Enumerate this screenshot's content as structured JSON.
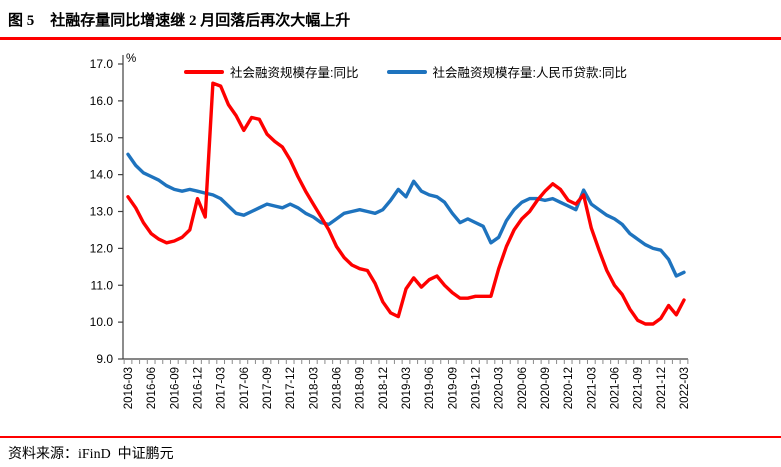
{
  "header": {
    "figure_label": "图 5",
    "title": "社融存量同比增速继 2 月回落后再次大幅上升"
  },
  "footer": {
    "source": "资料来源：iFinD  中证鹏元"
  },
  "rule_color": "#fe0000",
  "chart_data": {
    "type": "line",
    "title": "",
    "unit_label": "%",
    "grid": false,
    "legend_position": "top",
    "ylim": [
      9.0,
      17.0
    ],
    "ytick_step": 1.0,
    "ytick_labels": [
      "9.0",
      "10.0",
      "11.0",
      "12.0",
      "13.0",
      "14.0",
      "15.0",
      "16.0",
      "17.0"
    ],
    "x_start": "2016-03",
    "x_end": "2022-03",
    "x_frequency": "monthly",
    "xtick_labels": [
      "2016-03",
      "2016-06",
      "2016-09",
      "2016-12",
      "2017-03",
      "2017-06",
      "2017-09",
      "2017-12",
      "2018-03",
      "2018-06",
      "2018-09",
      "2018-12",
      "2019-03",
      "2019-06",
      "2019-09",
      "2019-12",
      "2020-03",
      "2020-06",
      "2020-09",
      "2020-12",
      "2021-03",
      "2021-06",
      "2021-09",
      "2021-12",
      "2022-03"
    ],
    "axis_color": "#3f3f3f",
    "tick_color": "#8a8a8a",
    "series": [
      {
        "name": "社会融资规模存量:同比",
        "color": "#fe0000",
        "values": [
          13.4,
          13.1,
          12.7,
          12.4,
          12.25,
          12.15,
          12.2,
          12.3,
          12.5,
          13.35,
          12.85,
          16.48,
          16.4,
          15.9,
          15.6,
          15.2,
          15.55,
          15.5,
          15.1,
          14.9,
          14.75,
          14.4,
          13.95,
          13.55,
          13.2,
          12.85,
          12.5,
          12.05,
          11.75,
          11.55,
          11.45,
          11.4,
          11.05,
          10.55,
          10.25,
          10.15,
          10.9,
          11.2,
          10.95,
          11.15,
          11.25,
          11.0,
          10.8,
          10.65,
          10.65,
          10.7,
          10.7,
          10.7,
          11.45,
          12.05,
          12.5,
          12.8,
          13.0,
          13.3,
          13.55,
          13.75,
          13.6,
          13.3,
          13.2,
          13.45,
          12.55,
          11.95,
          11.4,
          11.0,
          10.75,
          10.35,
          10.05,
          9.95,
          9.95,
          10.1,
          10.45,
          10.2,
          10.6
        ]
      },
      {
        "name": "社会融资规模存量:人民币贷款:同比",
        "color": "#1e73be",
        "values": [
          14.55,
          14.25,
          14.05,
          13.95,
          13.85,
          13.7,
          13.6,
          13.55,
          13.6,
          13.55,
          13.5,
          13.45,
          13.35,
          13.15,
          12.95,
          12.9,
          13.0,
          13.1,
          13.2,
          13.15,
          13.1,
          13.2,
          13.1,
          12.95,
          12.85,
          12.7,
          12.65,
          12.8,
          12.95,
          13.0,
          13.05,
          13.0,
          12.95,
          13.05,
          13.3,
          13.6,
          13.4,
          13.82,
          13.55,
          13.45,
          13.4,
          13.25,
          12.95,
          12.7,
          12.8,
          12.7,
          12.6,
          12.15,
          12.3,
          12.75,
          13.05,
          13.25,
          13.35,
          13.35,
          13.3,
          13.35,
          13.25,
          13.15,
          13.05,
          13.58,
          13.2,
          13.05,
          12.9,
          12.8,
          12.65,
          12.4,
          12.25,
          12.1,
          12.0,
          11.95,
          11.7,
          11.25,
          11.35
        ]
      }
    ]
  }
}
